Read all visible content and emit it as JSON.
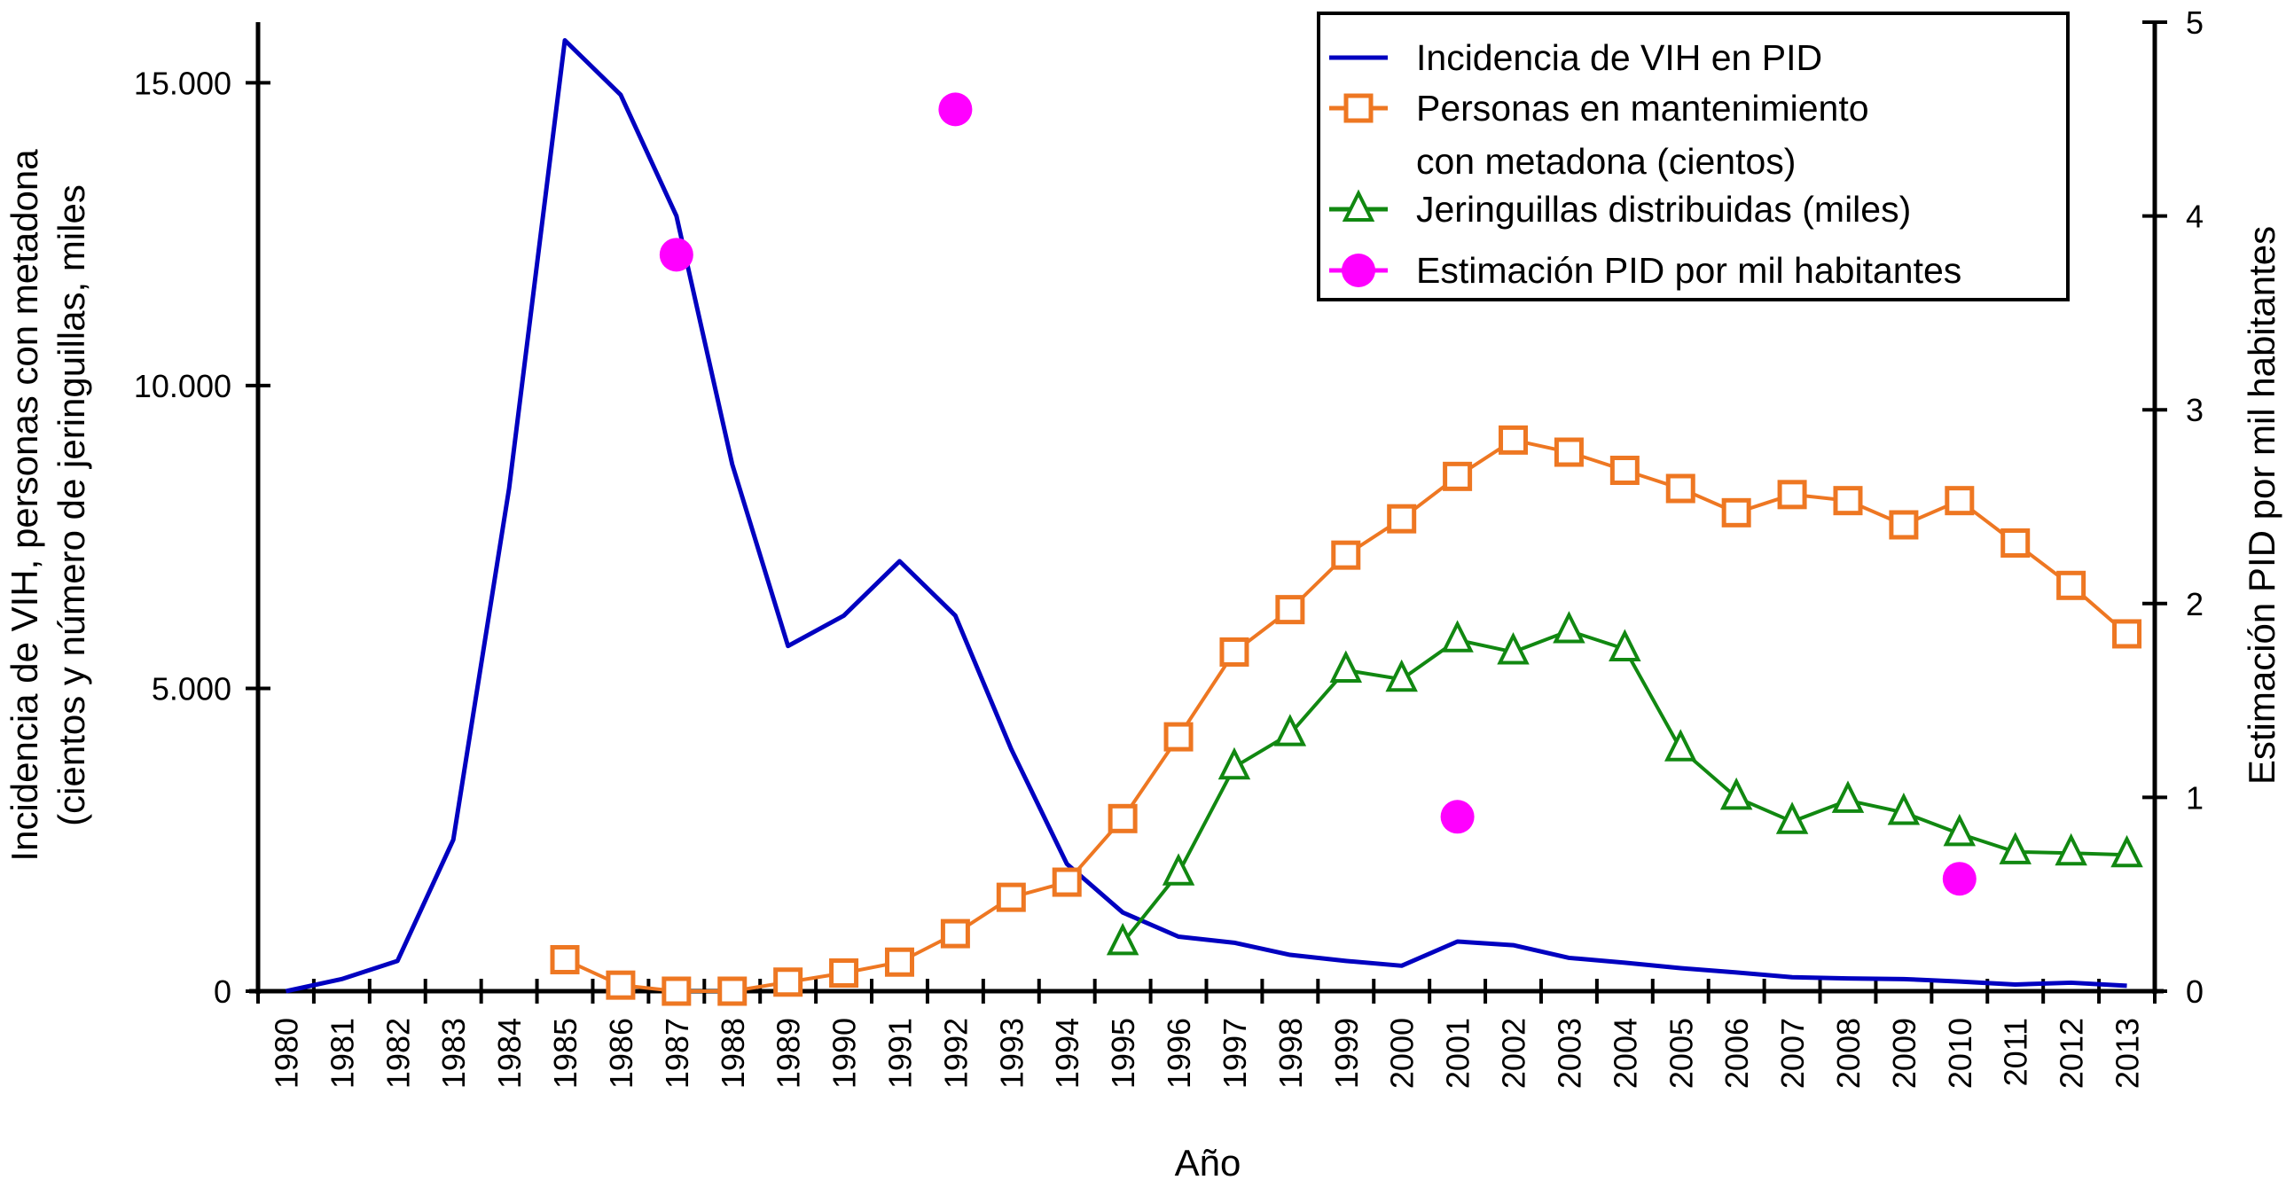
{
  "chart_data": {
    "type": "line",
    "title": "",
    "xlabel": "Año",
    "ylabel_left_line1": "Incidencia de VIH, personas con metadona",
    "ylabel_left_line2": "(cientos y número de jeringuillas, miles",
    "ylabel_right": "Estimación PID por mil habitantes",
    "categories": [
      "1980",
      "1981",
      "1982",
      "1983",
      "1984",
      "1985",
      "1986",
      "1987",
      "1988",
      "1989",
      "1990",
      "1991",
      "1992",
      "1993",
      "1994",
      "1995",
      "1996",
      "1997",
      "1998",
      "1999",
      "2000",
      "2001",
      "2002",
      "2003",
      "2004",
      "2005",
      "2006",
      "2007",
      "2008",
      "2009",
      "2010",
      "2011",
      "2012",
      "2013"
    ],
    "ylim_left": [
      0,
      16000
    ],
    "yticks_left": [
      {
        "value": 0,
        "label": "0"
      },
      {
        "value": 5000,
        "label": "5.000"
      },
      {
        "value": 10000,
        "label": "10.000"
      },
      {
        "value": 15000,
        "label": "15.000"
      }
    ],
    "ylim_right": [
      0,
      5
    ],
    "yticks_right": [
      {
        "value": 0,
        "label": "0"
      },
      {
        "value": 1,
        "label": "1"
      },
      {
        "value": 2,
        "label": "2"
      },
      {
        "value": 3,
        "label": "3"
      },
      {
        "value": 4,
        "label": "4"
      },
      {
        "value": 5,
        "label": "5"
      }
    ],
    "grid": false,
    "legend_position": "top-right",
    "series": [
      {
        "name": "Incidencia de VIH en PID",
        "axis": "left",
        "color": "#0000c0",
        "marker": "none",
        "values": [
          0,
          200,
          500,
          2500,
          8300,
          15700,
          14800,
          12800,
          8700,
          5700,
          6200,
          7100,
          6200,
          4000,
          2100,
          1300,
          900,
          800,
          600,
          500,
          420,
          820,
          760,
          550,
          470,
          380,
          310,
          230,
          210,
          200,
          160,
          110,
          140,
          90
        ]
      },
      {
        "name": "Personas en mantenimiento con metadona (cientos)",
        "legend_lines": [
          "Personas en mantenimiento",
          "con metadona (cientos)"
        ],
        "axis": "left",
        "color": "#ee7722",
        "marker": "square",
        "values": [
          null,
          null,
          null,
          null,
          null,
          520,
          100,
          0,
          0,
          150,
          300,
          480,
          950,
          1550,
          1800,
          2850,
          4200,
          5600,
          6300,
          7200,
          7800,
          8500,
          9100,
          8900,
          8600,
          8300,
          7900,
          8200,
          8100,
          7700,
          8100,
          7400,
          6700,
          5900
        ]
      },
      {
        "name": "Jeringuillas distribuidas (miles)",
        "axis": "left",
        "color": "#118811",
        "marker": "triangle",
        "values": [
          null,
          null,
          null,
          null,
          null,
          null,
          null,
          null,
          null,
          null,
          null,
          null,
          null,
          null,
          null,
          800,
          1950,
          3700,
          4250,
          5300,
          5150,
          5800,
          5600,
          5950,
          5650,
          4000,
          3200,
          2800,
          3150,
          2950,
          2600,
          2300,
          2280,
          2250
        ]
      },
      {
        "name": "Estimación PID por mil habitantes",
        "axis": "right",
        "color": "#ff00ff",
        "marker": "circle",
        "line": false,
        "values": [
          null,
          null,
          null,
          null,
          null,
          null,
          null,
          3.8,
          null,
          null,
          null,
          null,
          4.55,
          null,
          null,
          null,
          null,
          null,
          null,
          null,
          null,
          0.9,
          null,
          null,
          null,
          null,
          null,
          null,
          null,
          null,
          0.58,
          null,
          null,
          null
        ]
      }
    ]
  }
}
